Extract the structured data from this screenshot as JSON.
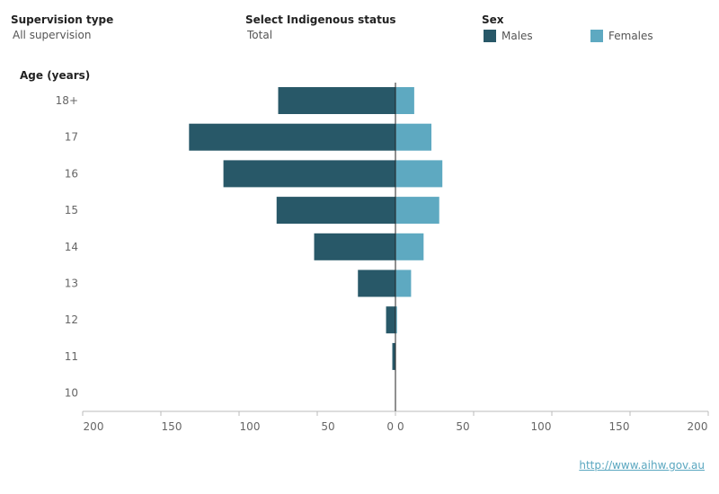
{
  "filters": {
    "supervision": {
      "label": "Supervision type",
      "value": "All supervision"
    },
    "indigenous": {
      "label": "Select Indigenous status",
      "value": "Total"
    }
  },
  "legend": {
    "title": "Sex",
    "items": [
      {
        "label": "Males",
        "color": "#285868"
      },
      {
        "label": "Females",
        "color": "#5ea9c1"
      }
    ]
  },
  "source": {
    "text": "http://www.aihw.gov.au"
  },
  "chart_data": {
    "type": "bar",
    "orientation": "horizontal-butterfly",
    "ylabel": "Age (years)",
    "categories": [
      "18+",
      "17",
      "16",
      "15",
      "14",
      "13",
      "12",
      "11",
      "10"
    ],
    "series": [
      {
        "name": "Males",
        "color": "#285868",
        "values": [
          75,
          132,
          110,
          76,
          52,
          24,
          6,
          2,
          0
        ]
      },
      {
        "name": "Females",
        "color": "#5ea9c1",
        "values": [
          12,
          23,
          30,
          28,
          18,
          10,
          1,
          0,
          0
        ]
      }
    ],
    "xlim": [
      0,
      200
    ],
    "xticks_left": [
      "200",
      "150",
      "100",
      "50",
      "0"
    ],
    "xticks_right": [
      "0",
      "50",
      "100",
      "150",
      "200"
    ],
    "grid": false
  }
}
